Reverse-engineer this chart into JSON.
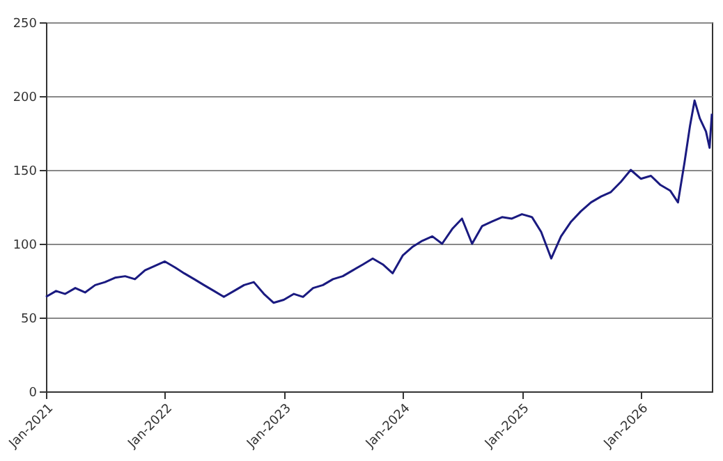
{
  "chart_data": {
    "type": "line",
    "x": [
      "2021-01-01",
      "2021-02-01",
      "2021-03-01",
      "2021-04-01",
      "2021-05-01",
      "2021-06-01",
      "2021-07-01",
      "2021-08-01",
      "2021-09-01",
      "2021-10-01",
      "2021-11-01",
      "2021-12-01",
      "2022-01-01",
      "2022-02-01",
      "2022-03-01",
      "2022-04-01",
      "2022-05-01",
      "2022-06-01",
      "2022-07-01",
      "2022-08-01",
      "2022-09-01",
      "2022-10-01",
      "2022-11-01",
      "2022-12-01",
      "2023-01-01",
      "2023-02-01",
      "2023-03-01",
      "2023-04-01",
      "2023-05-01",
      "2023-06-01",
      "2023-07-01",
      "2023-08-01",
      "2023-09-01",
      "2023-10-01",
      "2023-11-01",
      "2023-12-01",
      "2024-01-01",
      "2024-02-01",
      "2024-03-01",
      "2024-04-01",
      "2024-05-01",
      "2024-06-01",
      "2024-07-01",
      "2024-08-01",
      "2024-09-01",
      "2024-10-01",
      "2024-11-01",
      "2024-12-01",
      "2025-01-01",
      "2025-02-01",
      "2025-03-01",
      "2025-04-01",
      "2025-05-01",
      "2025-06-01",
      "2025-07-01",
      "2025-08-01",
      "2025-09-01",
      "2025-10-01",
      "2025-11-01",
      "2025-12-01",
      "2026-01-01",
      "2026-02-01",
      "2026-03-01",
      "2026-04-01",
      "2026-04-25",
      "2026-05-15",
      "2026-06-01",
      "2026-06-15",
      "2026-07-01",
      "2026-07-20",
      "2026-07-31",
      "2026-08-07"
    ],
    "series": [
      {
        "color": "#1a1a80",
        "values": [
          64,
          68,
          66,
          70,
          67,
          72,
          74,
          77,
          78,
          76,
          82,
          85,
          88,
          84,
          80,
          76,
          72,
          68,
          64,
          68,
          72,
          74,
          66,
          60,
          62,
          66,
          64,
          70,
          72,
          76,
          78,
          82,
          86,
          90,
          86,
          80,
          92,
          98,
          102,
          105,
          100,
          110,
          117,
          100,
          112,
          115,
          118,
          117,
          120,
          118,
          108,
          90,
          105,
          115,
          122,
          128,
          132,
          135,
          142,
          150,
          144,
          146,
          140,
          136,
          128,
          155,
          180,
          197,
          185,
          176,
          165,
          188
        ]
      }
    ],
    "xlim": [
      "2021-01-01",
      "2026-08-07"
    ],
    "xticks": [
      {
        "value": "2021-01-01",
        "label": "Jan-2021"
      },
      {
        "value": "2022-01-01",
        "label": "Jan-2022"
      },
      {
        "value": "2023-01-01",
        "label": "Jan-2023"
      },
      {
        "value": "2024-01-01",
        "label": "Jan-2024"
      },
      {
        "value": "2025-01-01",
        "label": "Jan-2025"
      },
      {
        "value": "2026-01-01",
        "label": "Jan-2026"
      }
    ],
    "ylim": [
      0,
      250
    ],
    "yticks": [
      0,
      50,
      100,
      150,
      200,
      250
    ],
    "grid": "y",
    "marker": "none",
    "line_style": "solid"
  }
}
